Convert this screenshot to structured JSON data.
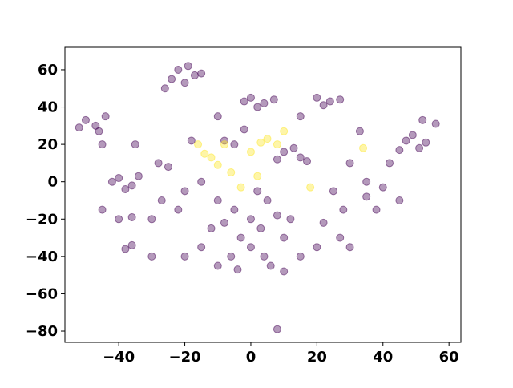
{
  "chart_data": {
    "type": "scatter",
    "xlim": [
      -56.3,
      63.6
    ],
    "ylim": [
      -86,
      72
    ],
    "xticks": [
      {
        "value": -40,
        "label": "−40"
      },
      {
        "value": -20,
        "label": "−20"
      },
      0,
      20,
      40,
      60
    ],
    "yticks": [
      {
        "value": -80,
        "label": "−80"
      },
      {
        "value": -60,
        "label": "−60"
      },
      {
        "value": -40,
        "label": "−40"
      },
      {
        "value": -20,
        "label": "−20"
      },
      0,
      20,
      40,
      60
    ],
    "series": [
      {
        "color": "#440154",
        "x": [
          -22,
          -19,
          -17,
          -24,
          -20,
          -15,
          -26,
          -50,
          -47,
          -44,
          -52,
          -46,
          0,
          4,
          7,
          2,
          -2,
          20,
          24,
          27,
          22,
          47,
          51,
          53,
          49,
          45,
          52,
          56,
          -40,
          -36,
          -34,
          -38,
          -42,
          -40,
          -36,
          -36,
          -38,
          10,
          15,
          13,
          17,
          8,
          -5,
          0,
          3,
          -3,
          5,
          -8,
          8,
          0,
          -6,
          4,
          10,
          -10,
          2,
          -12,
          12,
          6,
          -4,
          10,
          -27,
          -22,
          -30,
          -18,
          -5,
          -8,
          -25,
          -28,
          25,
          28,
          30,
          27,
          22,
          35,
          38,
          40,
          42,
          30,
          -30,
          -20,
          -15,
          -10,
          15,
          20,
          -45,
          -45,
          -35,
          -15,
          -20,
          35,
          45,
          -10,
          -2,
          15,
          33,
          8
        ],
        "y": [
          60,
          62,
          57,
          55,
          53,
          58,
          50,
          33,
          30,
          35,
          29,
          27,
          45,
          42,
          44,
          40,
          43,
          45,
          43,
          44,
          41,
          22,
          18,
          21,
          25,
          17,
          33,
          31,
          2,
          -2,
          3,
          -4,
          0,
          -20,
          -19,
          -34,
          -36,
          16,
          13,
          18,
          11,
          12,
          -15,
          -20,
          -25,
          -30,
          -10,
          -22,
          -18,
          -35,
          -40,
          -40,
          -30,
          -10,
          -5,
          -25,
          -20,
          -45,
          -47,
          -48,
          -10,
          -15,
          -20,
          22,
          20,
          22,
          8,
          10,
          -5,
          -15,
          -35,
          -30,
          -22,
          -8,
          -15,
          -3,
          10,
          10,
          -40,
          -40,
          -35,
          -45,
          -40,
          -35,
          -15,
          20,
          20,
          0,
          -5,
          0,
          -10,
          35,
          28,
          35,
          27,
          -79
        ]
      },
      {
        "color": "#fde725",
        "x": [
          -12,
          -10,
          -14,
          -6,
          -3,
          2,
          3,
          5,
          8,
          10,
          0,
          -8,
          34,
          18,
          -16
        ],
        "y": [
          13,
          9,
          15,
          5,
          -3,
          3,
          21,
          23,
          20,
          27,
          16,
          20,
          18,
          -3,
          20
        ]
      }
    ]
  }
}
